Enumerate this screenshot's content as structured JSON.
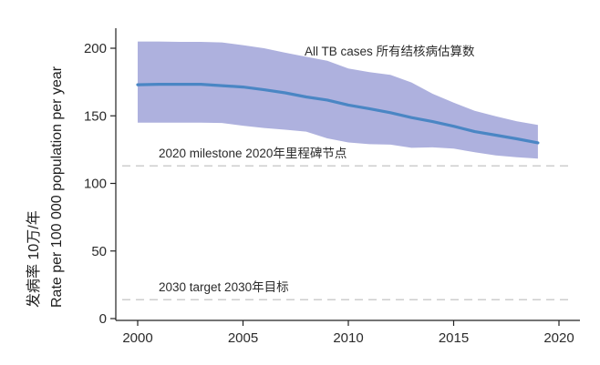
{
  "chart_data": {
    "type": "area",
    "x": [
      2000,
      2001,
      2002,
      2003,
      2004,
      2005,
      2006,
      2007,
      2008,
      2009,
      2010,
      2011,
      2012,
      2013,
      2014,
      2015,
      2016,
      2017,
      2018,
      2019
    ],
    "series": [
      {
        "values": [
          173,
          173.3,
          173.3,
          173.3,
          172.3,
          171.3,
          169.3,
          167,
          164,
          161.7,
          158,
          155.3,
          152.3,
          148.7,
          145.7,
          142.3,
          138.3,
          135.7,
          133,
          130
        ],
        "lower": [
          145,
          145,
          145,
          145,
          144.7,
          142.7,
          141,
          139.7,
          138.3,
          133.3,
          130.3,
          129,
          128.7,
          126.3,
          126.7,
          125.7,
          123,
          120.7,
          119.3,
          118.3
        ],
        "upper": [
          205,
          205,
          204.7,
          204.7,
          204.3,
          202.3,
          200,
          196.7,
          193.7,
          190.7,
          185,
          182.3,
          180.3,
          174.7,
          166.3,
          159.7,
          153.7,
          149.7,
          146,
          143.3
        ],
        "color": "#4a86c4",
        "band_color": "#aeb1de"
      }
    ],
    "reference_lines": [
      {
        "value": 113,
        "label": "2020 milestone 2020年里程碑节点"
      },
      {
        "value": 14,
        "label": "2030 target 2030年目标"
      }
    ],
    "annotation": "All TB cases 所有结核病估算数",
    "ylabel_zh": "发病率 10万/年",
    "ylabel_en": "Rate per 100 000 population per year",
    "xticks": [
      "2000",
      "2005",
      "2010",
      "2015",
      "2020"
    ],
    "yticks": [
      "0",
      "50",
      "100",
      "150",
      "200"
    ],
    "xlim": [
      2000,
      2020
    ],
    "ylim": [
      0,
      210
    ],
    "grid": false,
    "reference_line_color": "#bdbdbd"
  }
}
